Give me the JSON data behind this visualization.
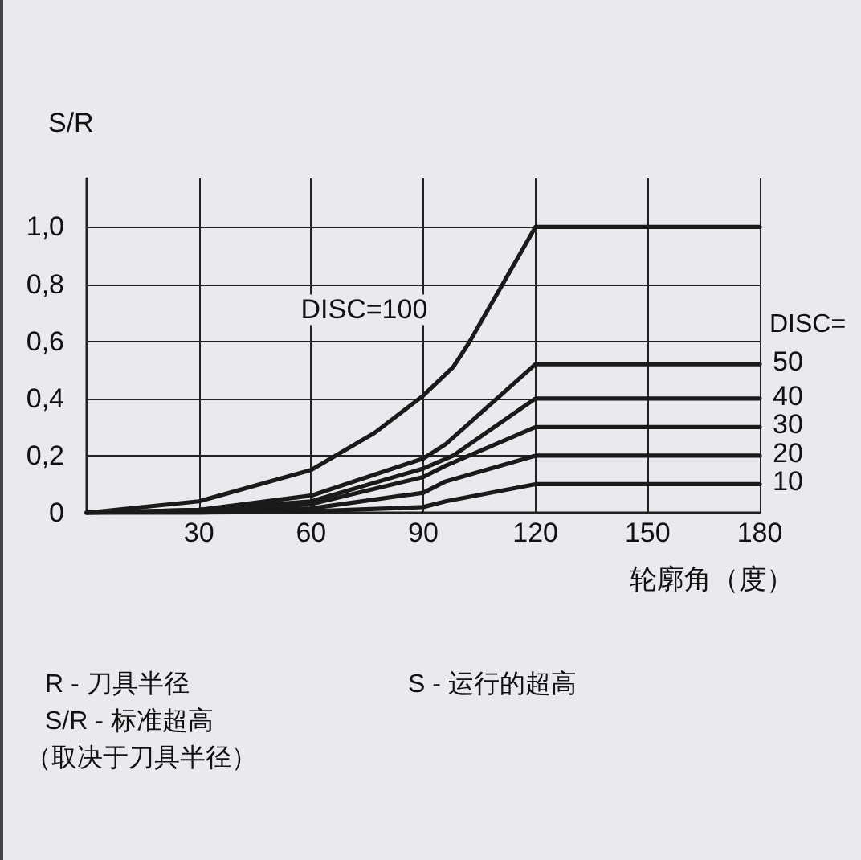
{
  "chart_data": {
    "type": "line",
    "ylabel": "S/R",
    "xlabel": "轮廓角（度）",
    "xlim": [
      0,
      180
    ],
    "ylim": [
      0,
      1.17
    ],
    "xticks": [
      30,
      60,
      90,
      120,
      150,
      180
    ],
    "yticks": [
      0,
      {
        "value": 0.2,
        "label": "0,2"
      },
      {
        "value": 0.4,
        "label": "0,4"
      },
      {
        "value": 0.6,
        "label": "0,6"
      },
      {
        "value": 0.8,
        "label": "0,8"
      },
      {
        "value": 1.0,
        "label": "1,0"
      }
    ],
    "grid": true,
    "legend": false,
    "marker": "none",
    "line_style": "solid",
    "series": [
      {
        "name": "DISC=100",
        "color": "#1a1a1a",
        "x": [
          0,
          30,
          60,
          77,
          90,
          98,
          102,
          120,
          180
        ],
        "values": [
          0,
          0.04,
          0.15,
          0.28,
          0.41,
          0.51,
          0.59,
          1.0,
          1.0
        ]
      },
      {
        "name": "50",
        "color": "#1a1a1a",
        "x": [
          0,
          30,
          60,
          90,
          96,
          120,
          180
        ],
        "values": [
          0,
          0.01,
          0.06,
          0.19,
          0.24,
          0.52,
          0.52
        ]
      },
      {
        "name": "40",
        "color": "#1a1a1a",
        "x": [
          0,
          30,
          60,
          90,
          98,
          120,
          180
        ],
        "values": [
          0,
          0.01,
          0.04,
          0.155,
          0.2,
          0.4,
          0.4
        ]
      },
      {
        "name": "30",
        "color": "#1a1a1a",
        "x": [
          0,
          30,
          60,
          90,
          96,
          120,
          180
        ],
        "values": [
          0,
          0.005,
          0.03,
          0.125,
          0.165,
          0.3,
          0.3
        ]
      },
      {
        "name": "20",
        "color": "#1a1a1a",
        "x": [
          0,
          30,
          60,
          90,
          96,
          120,
          180
        ],
        "values": [
          0,
          0,
          0.015,
          0.07,
          0.11,
          0.2,
          0.2
        ]
      },
      {
        "name": "10",
        "color": "#1a1a1a",
        "x": [
          0,
          30,
          60,
          90,
          96,
          120,
          180
        ],
        "values": [
          0,
          0,
          0.005,
          0.02,
          0.04,
          0.1,
          0.1
        ]
      }
    ],
    "annotations": [
      "DISC=",
      "R - 刀具半径",
      "S - 运行的超高",
      "S/R - 标准超高",
      "（取决于刀具半径）"
    ]
  }
}
